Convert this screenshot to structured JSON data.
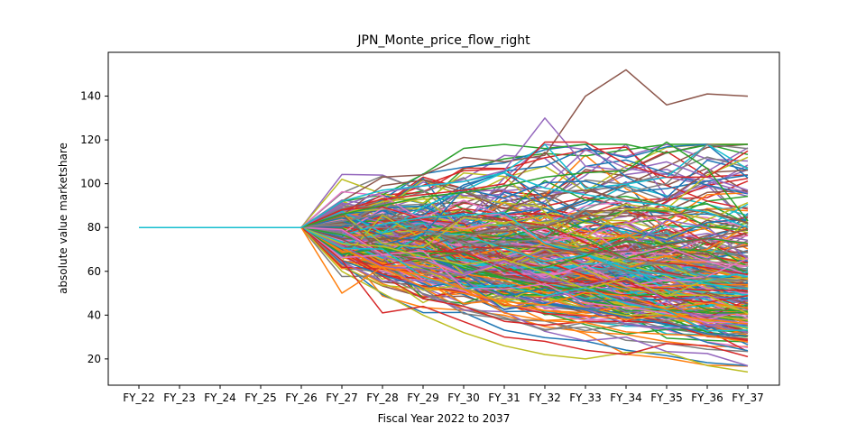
{
  "chart_data": {
    "type": "line",
    "title": "JPN_Monte_price_flow_right",
    "xlabel": "Fiscal Year 2022 to 2037",
    "ylabel": "absolute value marketshare",
    "categories": [
      "FY_22",
      "FY_23",
      "FY_24",
      "FY_25",
      "FY_26",
      "FY_27",
      "FY_28",
      "FY_29",
      "FY_30",
      "FY_31",
      "FY_32",
      "FY_33",
      "FY_34",
      "FY_35",
      "FY_36",
      "FY_37"
    ],
    "ylim": [
      8,
      160
    ],
    "yticks": [
      20,
      40,
      60,
      80,
      100,
      120,
      140
    ],
    "grid": false,
    "legend": "none",
    "start_value": 80,
    "flat_until": "FY_26",
    "simulated_series_count": 300,
    "palette": [
      "#1f77b4",
      "#ff7f0e",
      "#2ca02c",
      "#d62728",
      "#9467bd",
      "#8c564b",
      "#e377c2",
      "#7f7f7f",
      "#bcbd22",
      "#17becf"
    ],
    "highlighted_series": [
      {
        "color": "#8c564b",
        "values": [
          80,
          80,
          80,
          80,
          80,
          92,
          103,
          104,
          112,
          110,
          113,
          140,
          152,
          136,
          141,
          140
        ]
      },
      {
        "color": "#9467bd",
        "values": [
          80,
          80,
          80,
          80,
          80,
          90,
          96,
          99,
          101,
          106,
          130,
          108,
          106,
          110,
          103,
          97
        ]
      },
      {
        "color": "#d62728",
        "values": [
          80,
          80,
          80,
          80,
          80,
          88,
          93,
          95,
          97,
          100,
          119,
          119,
          109,
          103,
          103,
          115
        ]
      },
      {
        "color": "#2ca02c",
        "values": [
          80,
          80,
          80,
          80,
          80,
          86,
          90,
          94,
          96,
          99,
          103,
          105,
          106,
          119,
          107,
          83
        ]
      },
      {
        "color": "#bcbd22",
        "values": [
          80,
          80,
          80,
          80,
          80,
          60,
          50,
          40,
          32,
          26,
          22,
          20,
          23,
          23,
          17,
          14
        ]
      },
      {
        "color": "#d62728",
        "values": [
          80,
          80,
          80,
          80,
          80,
          65,
          41,
          44,
          37,
          30,
          28,
          24,
          22,
          27,
          26,
          21
        ]
      },
      {
        "color": "#ff7f0e",
        "values": [
          80,
          80,
          80,
          80,
          80,
          50,
          62,
          58,
          52,
          45,
          42,
          40,
          38,
          40,
          38,
          36
        ]
      },
      {
        "color": "#17becf",
        "values": [
          80,
          80,
          80,
          80,
          80,
          92,
          97,
          99,
          101,
          105,
          98,
          95,
          92,
          90,
          87,
          80
        ]
      }
    ]
  }
}
